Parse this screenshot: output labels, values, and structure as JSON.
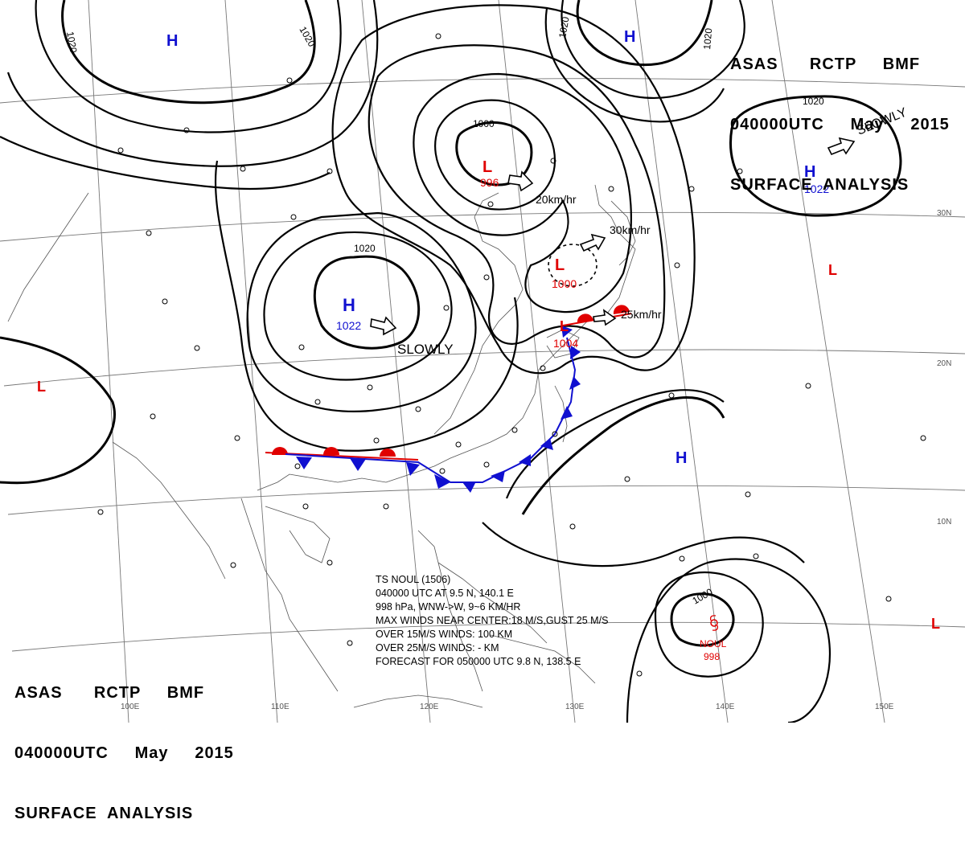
{
  "header_top": {
    "line1": "ASAS      RCTP     BMF",
    "line2": "040000UTC     May     2015",
    "line3": "SURFACE  ANALYSIS"
  },
  "header_bottom": {
    "line1": "ASAS      RCTP     BMF",
    "line2": "040000UTC     May     2015",
    "line3": "SURFACE  ANALYSIS"
  },
  "storm_info": {
    "line1": "TS  NOUL  (1506)",
    "line2": "040000 UTC  AT 9.5 N, 140.1 E",
    "line3": "998 hPa, WNW->W, 9~6 KM/HR",
    "line4": "MAX WINDS NEAR CENTER:18 M/S,GUST 25 M/S",
    "line5": "OVER 15M/S WINDS: 100 KM",
    "line6": "OVER 25M/S WINDS:  - KM",
    "line7": "FORECAST FOR 050000 UTC 9.8 N, 138.5 E"
  },
  "pressure_systems": [
    {
      "type": "H",
      "pressure": ""
    },
    {
      "type": "H",
      "pressure": ""
    },
    {
      "type": "H",
      "pressure": "1022"
    },
    {
      "type": "H",
      "pressure": "1022"
    },
    {
      "type": "H",
      "pressure": ""
    },
    {
      "type": "L",
      "pressure": "996"
    },
    {
      "type": "L",
      "pressure": "1000"
    },
    {
      "type": "L",
      "pressure": "1004"
    },
    {
      "type": "L",
      "pressure": ""
    },
    {
      "type": "L",
      "pressure": ""
    },
    {
      "type": "L",
      "pressure": ""
    }
  ],
  "typhoon": {
    "name": "NOUL",
    "pressure": "998"
  },
  "movement_labels": {
    "h_east": "SLOWLY",
    "h_china": "SLOWLY",
    "l_996": "20km/hr",
    "l_1000": "30km/hr",
    "l_1004": "25km/hr"
  },
  "isobar_labels": [
    "1020",
    "1020",
    "1020",
    "1020",
    "1020",
    "1020",
    "1000",
    "1000"
  ],
  "longitude_labels": [
    "100E",
    "110E",
    "120E",
    "130E",
    "140E",
    "150E"
  ],
  "latitude_labels": [
    "30N",
    "20N",
    "10N"
  ],
  "colors": {
    "high": "#1010d0",
    "low": "#e00000",
    "warm_front": "#e00000",
    "cold_front": "#1010d0",
    "isobar": "#000000",
    "coast": "#555555",
    "grid": "#777777"
  }
}
